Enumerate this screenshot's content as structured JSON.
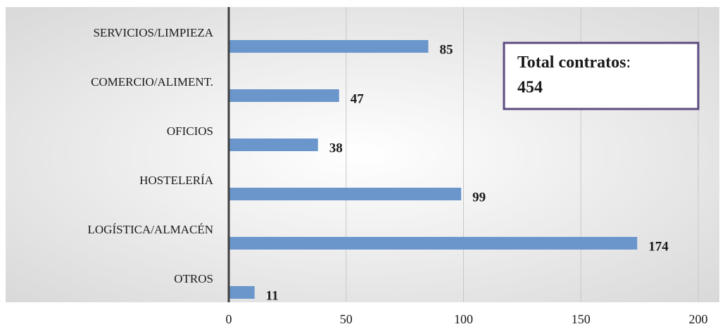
{
  "chart_data": {
    "type": "barh",
    "categories": [
      "SERVICIOS/LIMPIEZA",
      "COMERCIO/ALIMENT.",
      "OFICIOS",
      "HOSTELERÍA",
      "LOGÍSTICA/ALMACÉN",
      "OTROS"
    ],
    "values": [
      85,
      47,
      38,
      99,
      174,
      11
    ],
    "color": "#6a96cc",
    "xlim": [
      0,
      200
    ],
    "xticks": [
      0,
      50,
      100,
      150,
      200
    ],
    "grid": true,
    "annotation": {
      "label": "Total contratos",
      "separator": ":",
      "value": 454
    }
  }
}
